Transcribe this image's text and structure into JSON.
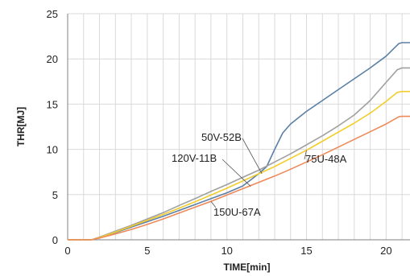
{
  "chart_data": {
    "type": "line",
    "xlabel": "TIME[min]",
    "ylabel": "THR[MJ]",
    "xlim": [
      0,
      21.5
    ],
    "ylim": [
      0,
      25
    ],
    "xticks": [
      0,
      5,
      10,
      15,
      20
    ],
    "yticks": [
      0,
      5,
      10,
      15,
      20,
      25
    ],
    "minor_x_step": 1,
    "grid": true,
    "legend": "none",
    "series": [
      {
        "name": "120V-11B",
        "color": "#5b7fa6",
        "points": [
          [
            0,
            0
          ],
          [
            1.5,
            0
          ],
          [
            2,
            0.25
          ],
          [
            3,
            0.8
          ],
          [
            4,
            1.4
          ],
          [
            5,
            2.0
          ],
          [
            6,
            2.6
          ],
          [
            7,
            3.25
          ],
          [
            8,
            3.9
          ],
          [
            9,
            4.55
          ],
          [
            10,
            5.2
          ],
          [
            11,
            5.95
          ],
          [
            12,
            7.3
          ],
          [
            12.5,
            8.1
          ],
          [
            13,
            10.0
          ],
          [
            13.5,
            11.8
          ],
          [
            14,
            12.8
          ],
          [
            15,
            14.2
          ],
          [
            16,
            15.4
          ],
          [
            17,
            16.6
          ],
          [
            18,
            17.8
          ],
          [
            19,
            19.0
          ],
          [
            20,
            20.3
          ],
          [
            20.8,
            21.7
          ],
          [
            21,
            21.8
          ],
          [
            21.5,
            21.8
          ]
        ]
      },
      {
        "name": "50V-52B",
        "color": "#a0a0a0",
        "points": [
          [
            0,
            0
          ],
          [
            1.5,
            0
          ],
          [
            2,
            0.3
          ],
          [
            3,
            0.95
          ],
          [
            4,
            1.6
          ],
          [
            5,
            2.3
          ],
          [
            6,
            3.0
          ],
          [
            7,
            3.8
          ],
          [
            8,
            4.55
          ],
          [
            9,
            5.35
          ],
          [
            10,
            6.1
          ],
          [
            11,
            6.9
          ],
          [
            12,
            7.7
          ],
          [
            13,
            8.6
          ],
          [
            14,
            9.5
          ],
          [
            15,
            10.5
          ],
          [
            16,
            11.5
          ],
          [
            17,
            12.6
          ],
          [
            18,
            13.8
          ],
          [
            19,
            15.4
          ],
          [
            20,
            17.4
          ],
          [
            20.7,
            18.8
          ],
          [
            21,
            19.0
          ],
          [
            21.5,
            19.0
          ]
        ]
      },
      {
        "name": "75U-48A",
        "color": "#f2cd2c",
        "points": [
          [
            0,
            0
          ],
          [
            1.5,
            0
          ],
          [
            2,
            0.25
          ],
          [
            3,
            0.85
          ],
          [
            4,
            1.5
          ],
          [
            5,
            2.15
          ],
          [
            6,
            2.8
          ],
          [
            7,
            3.5
          ],
          [
            8,
            4.2
          ],
          [
            9,
            4.95
          ],
          [
            10,
            5.7
          ],
          [
            11,
            6.5
          ],
          [
            12,
            7.3
          ],
          [
            13,
            8.1
          ],
          [
            14,
            9.0
          ],
          [
            15,
            9.9
          ],
          [
            16,
            10.9
          ],
          [
            17,
            11.9
          ],
          [
            18,
            12.9
          ],
          [
            19,
            14.0
          ],
          [
            20,
            15.3
          ],
          [
            20.7,
            16.3
          ],
          [
            21,
            16.4
          ],
          [
            21.5,
            16.4
          ]
        ]
      },
      {
        "name": "150U-67A",
        "color": "#ee8a5a",
        "points": [
          [
            0,
            0
          ],
          [
            1.5,
            0
          ],
          [
            2,
            0.2
          ],
          [
            3,
            0.65
          ],
          [
            4,
            1.15
          ],
          [
            5,
            1.7
          ],
          [
            6,
            2.3
          ],
          [
            7,
            2.95
          ],
          [
            8,
            3.6
          ],
          [
            9,
            4.25
          ],
          [
            10,
            4.95
          ],
          [
            11,
            5.65
          ],
          [
            12,
            6.35
          ],
          [
            13,
            7.05
          ],
          [
            14,
            7.8
          ],
          [
            15,
            8.6
          ],
          [
            16,
            9.4
          ],
          [
            17,
            10.25
          ],
          [
            18,
            11.1
          ],
          [
            19,
            11.95
          ],
          [
            20,
            12.8
          ],
          [
            20.8,
            13.6
          ],
          [
            21,
            13.65
          ],
          [
            21.5,
            13.65
          ]
        ]
      }
    ],
    "annotations": [
      {
        "text": "50V-52B",
        "series": "50V-52B",
        "x": 12.2,
        "y": 7.3
      },
      {
        "text": "120V-11B",
        "series": "120V-11B",
        "x": 11.5,
        "y": 5.9
      },
      {
        "text": "75U-48A",
        "series": "75U-48A",
        "x": 15.0,
        "y": 9.9
      },
      {
        "text": "150U-67A",
        "series": "150U-67A",
        "x": 9.0,
        "y": 4.25
      }
    ]
  }
}
